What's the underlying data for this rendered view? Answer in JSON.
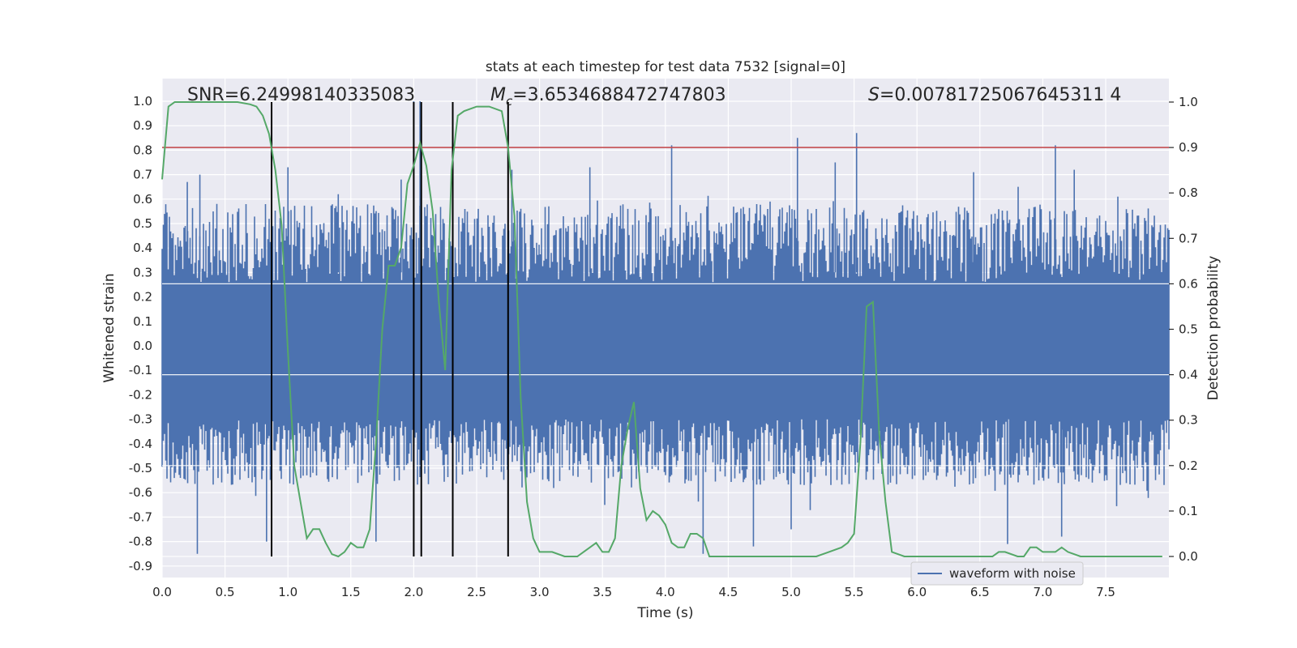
{
  "chart_data": {
    "type": "line",
    "title": "stats at each timestep for test data 7532 [signal=0]",
    "xlabel": "Time (s)",
    "ylabel_left": "Whitened strain",
    "ylabel_right": "Detection probability",
    "xlim": [
      0.0,
      8.0
    ],
    "ylim_left": [
      -0.95,
      1.05
    ],
    "ylim_right": [
      -0.02,
      1.04
    ],
    "x_ticks": [
      "0.0",
      "0.5",
      "1.0",
      "1.5",
      "2.0",
      "2.5",
      "3.0",
      "3.5",
      "4.0",
      "4.5",
      "5.0",
      "5.5",
      "6.0",
      "6.5",
      "7.0",
      "7.5"
    ],
    "y_left_ticks": [
      "1.0",
      "0.9",
      "0.8",
      "0.7",
      "0.6",
      "0.5",
      "0.4",
      "0.3",
      "0.2",
      "0.1",
      "0.0",
      "-0.1",
      "-0.2",
      "-0.3",
      "-0.4",
      "-0.5",
      "-0.6",
      "-0.7",
      "-0.8",
      "-0.9"
    ],
    "y_right_ticks": [
      "1.0",
      "0.9",
      "0.8",
      "0.7",
      "0.6",
      "0.5",
      "0.4",
      "0.3",
      "0.2",
      "0.1",
      "0.0"
    ],
    "annotations": {
      "snr_label": "SNR",
      "snr": "=6.24998140335083",
      "mc_label": "M",
      "mc_sub": "c",
      "mc": "=3.6534688472747803",
      "s_label": "S",
      "s": "=0.00781725067645311 4"
    },
    "legend": {
      "label": "waveform with noise",
      "placement": "lower right"
    },
    "threshold": {
      "value": 0.9,
      "axis": "right",
      "color": "#c44e52"
    },
    "vertical_markers": [
      0.87,
      2.0,
      2.06,
      2.31,
      2.75
    ],
    "waveform": {
      "color": "#4c72b0",
      "core_band": [
        -0.3,
        0.26
      ],
      "typical_band": [
        -0.57,
        0.58
      ],
      "peaks_positive": [
        [
          0.2,
          0.67
        ],
        [
          0.3,
          0.7
        ],
        [
          1.0,
          0.73
        ],
        [
          1.4,
          0.62
        ],
        [
          1.9,
          0.68
        ],
        [
          2.0,
          1.0
        ],
        [
          2.05,
          1.0
        ],
        [
          2.78,
          0.72
        ],
        [
          3.4,
          0.73
        ],
        [
          4.05,
          0.82
        ],
        [
          5.05,
          0.85
        ],
        [
          5.35,
          0.75
        ],
        [
          5.52,
          0.87
        ],
        [
          6.45,
          0.71
        ],
        [
          7.1,
          0.82
        ],
        [
          7.25,
          0.72
        ]
      ],
      "peaks_negative": [
        [
          0.28,
          -0.85
        ],
        [
          0.83,
          -0.8
        ],
        [
          1.7,
          -0.8
        ],
        [
          4.3,
          -0.85
        ],
        [
          4.7,
          -0.82
        ],
        [
          5.0,
          -0.75
        ],
        [
          6.72,
          -0.81
        ],
        [
          7.15,
          -0.78
        ]
      ]
    },
    "series": [
      {
        "name": "Detection probability",
        "color": "#55a868",
        "x": [
          0.0,
          0.05,
          0.1,
          0.2,
          0.3,
          0.4,
          0.5,
          0.6,
          0.7,
          0.75,
          0.8,
          0.85,
          0.9,
          0.95,
          1.0,
          1.05,
          1.1,
          1.15,
          1.2,
          1.25,
          1.3,
          1.35,
          1.4,
          1.45,
          1.5,
          1.55,
          1.6,
          1.65,
          1.7,
          1.75,
          1.8,
          1.85,
          1.9,
          1.95,
          2.0,
          2.05,
          2.1,
          2.15,
          2.2,
          2.25,
          2.3,
          2.35,
          2.4,
          2.5,
          2.6,
          2.7,
          2.75,
          2.8,
          2.85,
          2.9,
          2.95,
          3.0,
          3.1,
          3.2,
          3.3,
          3.35,
          3.4,
          3.45,
          3.5,
          3.55,
          3.6,
          3.65,
          3.7,
          3.75,
          3.8,
          3.85,
          3.9,
          3.95,
          4.0,
          4.05,
          4.1,
          4.15,
          4.2,
          4.25,
          4.3,
          4.35,
          4.4,
          4.45,
          4.5,
          4.7,
          5.0,
          5.2,
          5.3,
          5.4,
          5.45,
          5.5,
          5.55,
          5.6,
          5.65,
          5.7,
          5.75,
          5.8,
          5.9,
          6.0,
          6.2,
          6.4,
          6.5,
          6.6,
          6.65,
          6.7,
          6.8,
          6.85,
          6.9,
          6.95,
          7.0,
          7.1,
          7.15,
          7.2,
          7.3,
          7.5,
          7.7,
          7.95
        ],
        "y": [
          0.83,
          0.99,
          1.0,
          1.0,
          1.0,
          1.0,
          1.0,
          1.0,
          0.995,
          0.99,
          0.97,
          0.93,
          0.85,
          0.73,
          0.45,
          0.2,
          0.12,
          0.04,
          0.06,
          0.06,
          0.03,
          0.005,
          0.0,
          0.01,
          0.03,
          0.02,
          0.02,
          0.06,
          0.25,
          0.5,
          0.64,
          0.64,
          0.68,
          0.82,
          0.86,
          0.91,
          0.86,
          0.76,
          0.56,
          0.41,
          0.85,
          0.97,
          0.98,
          0.99,
          0.99,
          0.98,
          0.9,
          0.75,
          0.35,
          0.12,
          0.04,
          0.01,
          0.01,
          0.0,
          0.0,
          0.01,
          0.02,
          0.03,
          0.01,
          0.01,
          0.04,
          0.2,
          0.28,
          0.34,
          0.15,
          0.08,
          0.1,
          0.09,
          0.07,
          0.03,
          0.02,
          0.02,
          0.05,
          0.05,
          0.04,
          0.0,
          0.0,
          0.0,
          0.0,
          0.0,
          0.0,
          0.0,
          0.01,
          0.02,
          0.03,
          0.05,
          0.25,
          0.55,
          0.56,
          0.27,
          0.12,
          0.01,
          0.0,
          0.0,
          0.0,
          0.0,
          0.0,
          0.0,
          0.01,
          0.01,
          0.0,
          0.0,
          0.02,
          0.02,
          0.01,
          0.01,
          0.02,
          0.01,
          0.0,
          0.0,
          0.0,
          0.0
        ]
      }
    ]
  }
}
